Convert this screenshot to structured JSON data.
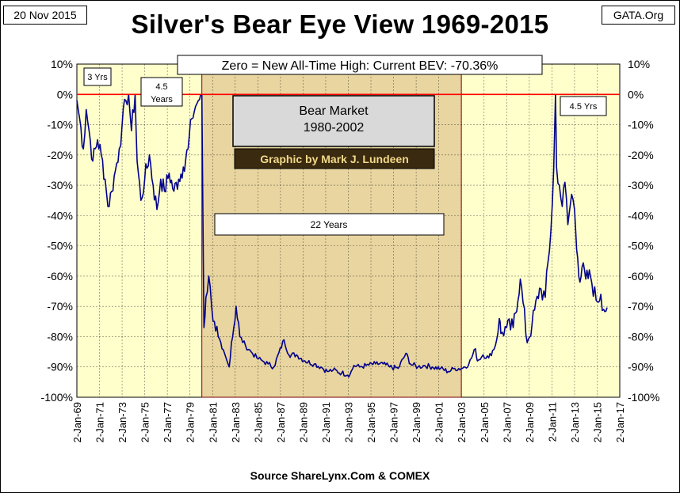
{
  "header": {
    "date": "20 Nov 2015",
    "source_tag": "GATA.Org",
    "title": "Silver's Bear Eye View 1969-2015"
  },
  "footer": {
    "source": "Source ShareLynx.Com & COMEX"
  },
  "colors": {
    "plot_background": "#ffffcc",
    "bear_market_shade": "#e8d5a0",
    "series_line": "#00008b",
    "zero_line": "#ff0000",
    "credit_box": "#3a2a10",
    "credit_text": "#f2d98a",
    "label_box": "#d9d9d9"
  },
  "annotations": {
    "bev_note": "Zero = New All-Time High: Current BEV: -70.36%",
    "bear_title_line1": "Bear Market",
    "bear_title_line2": "1980-2002",
    "credit": "Graphic by Mark J. Lundeen",
    "span_22": "22 Years",
    "span_3": "3 Yrs",
    "span_45_line1": "4.5",
    "span_45_line2": "Years",
    "span_45b": "4.5 Yrs"
  },
  "chart_data": {
    "type": "line",
    "title": "Silver's Bear Eye View 1969-2015",
    "xlabel": "",
    "ylabel": "",
    "ylim": [
      -100,
      10
    ],
    "xlim": [
      "1969-01-02",
      "2017-01-02"
    ],
    "y_ticks": [
      "10%",
      "0%",
      "-10%",
      "-20%",
      "-30%",
      "-40%",
      "-50%",
      "-60%",
      "-70%",
      "-80%",
      "-90%",
      "-100%"
    ],
    "x_ticks": [
      "2-Jan-69",
      "2-Jan-71",
      "2-Jan-73",
      "2-Jan-75",
      "2-Jan-77",
      "2-Jan-79",
      "2-Jan-81",
      "2-Jan-83",
      "2-Jan-85",
      "2-Jan-87",
      "2-Jan-89",
      "2-Jan-91",
      "2-Jan-93",
      "2-Jan-95",
      "2-Jan-97",
      "2-Jan-99",
      "2-Jan-01",
      "2-Jan-03",
      "2-Jan-05",
      "2-Jan-07",
      "2-Jan-09",
      "2-Jan-11",
      "2-Jan-13",
      "2-Jan-15",
      "2-Jan-17"
    ],
    "grid": true,
    "shaded_region": {
      "start": "1980-01-21",
      "end": "2002-12-31",
      "label": "Bear Market 1980-2002"
    },
    "reference_line": {
      "y": 0,
      "color": "#ff0000"
    },
    "series": [
      {
        "name": "",
        "points": [
          [
            "1969-01-02",
            -2
          ],
          [
            "1969-04-01",
            -8
          ],
          [
            "1969-08-01",
            -18
          ],
          [
            "1969-11-01",
            -5
          ],
          [
            "1970-02-01",
            -12
          ],
          [
            "1970-06-01",
            -22
          ],
          [
            "1970-11-01",
            -15
          ],
          [
            "1971-03-01",
            -20
          ],
          [
            "1971-07-01",
            -28
          ],
          [
            "1971-10-01",
            -37
          ],
          [
            "1972-02-01",
            -32
          ],
          [
            "1972-06-01",
            -25
          ],
          [
            "1972-10-01",
            -18
          ],
          [
            "1973-01-02",
            -10
          ],
          [
            "1973-05-01",
            -2
          ],
          [
            "1973-08-01",
            0
          ],
          [
            "1973-11-01",
            -12
          ],
          [
            "1974-02-26",
            0
          ],
          [
            "1974-05-01",
            -22
          ],
          [
            "1974-09-01",
            -35
          ],
          [
            "1975-01-01",
            -28
          ],
          [
            "1975-06-01",
            -20
          ],
          [
            "1975-10-01",
            -30
          ],
          [
            "1976-02-01",
            -38
          ],
          [
            "1976-06-01",
            -28
          ],
          [
            "1976-10-01",
            -32
          ],
          [
            "1977-03-01",
            -26
          ],
          [
            "1977-08-01",
            -32
          ],
          [
            "1978-01-01",
            -28
          ],
          [
            "1978-06-01",
            -24
          ],
          [
            "1978-11-01",
            -18
          ],
          [
            "1979-03-01",
            -8
          ],
          [
            "1979-07-01",
            -4
          ],
          [
            "1979-10-01",
            -2
          ],
          [
            "1980-01-21",
            0
          ],
          [
            "1980-02-15",
            -30
          ],
          [
            "1980-03-27",
            -77
          ],
          [
            "1980-06-01",
            -67
          ],
          [
            "1980-09-01",
            -60
          ],
          [
            "1980-12-01",
            -70
          ],
          [
            "1981-03-01",
            -75
          ],
          [
            "1981-07-01",
            -80
          ],
          [
            "1981-11-01",
            -84
          ],
          [
            "1982-06-21",
            -90
          ],
          [
            "1982-09-01",
            -82
          ],
          [
            "1983-02-01",
            -70
          ],
          [
            "1983-06-01",
            -80
          ],
          [
            "1983-12-01",
            -83
          ],
          [
            "1984-06-01",
            -85
          ],
          [
            "1984-12-01",
            -87
          ],
          [
            "1985-06-01",
            -88
          ],
          [
            "1985-12-01",
            -89
          ],
          [
            "1986-06-01",
            -90
          ],
          [
            "1987-04-25",
            -81
          ],
          [
            "1987-10-01",
            -86
          ],
          [
            "1988-06-01",
            -86
          ],
          [
            "1989-03-01",
            -88
          ],
          [
            "1990-01-01",
            -89
          ],
          [
            "1990-08-01",
            -90
          ],
          [
            "1991-03-01",
            -91.5
          ],
          [
            "1991-09-01",
            -91
          ],
          [
            "1992-06-01",
            -92
          ],
          [
            "1993-02-26",
            -92.5
          ],
          [
            "1993-07-01",
            -89.5
          ],
          [
            "1994-01-01",
            -90
          ],
          [
            "1994-08-01",
            -89.5
          ],
          [
            "1995-06-01",
            -89
          ],
          [
            "1996-02-01",
            -89
          ],
          [
            "1996-09-01",
            -90
          ],
          [
            "1997-06-01",
            -90.5
          ],
          [
            "1998-02-06",
            -85.5
          ],
          [
            "1998-07-01",
            -89
          ],
          [
            "1999-03-01",
            -90
          ],
          [
            "1999-10-01",
            -89.5
          ],
          [
            "2000-06-01",
            -90
          ],
          [
            "2001-03-01",
            -90.5
          ],
          [
            "2001-11-01",
            -91.5
          ],
          [
            "2002-06-01",
            -90.5
          ],
          [
            "2003-01-01",
            -90.5
          ],
          [
            "2003-09-01",
            -89
          ],
          [
            "2004-04-01",
            -84
          ],
          [
            "2004-06-01",
            -88
          ],
          [
            "2004-12-01",
            -86
          ],
          [
            "2005-06-01",
            -87
          ],
          [
            "2006-01-01",
            -83
          ],
          [
            "2006-05-10",
            -74
          ],
          [
            "2006-07-01",
            -79
          ],
          [
            "2007-01-01",
            -77
          ],
          [
            "2007-08-01",
            -77
          ],
          [
            "2008-03-17",
            -61
          ],
          [
            "2008-10-27",
            -82
          ],
          [
            "2009-04-01",
            -76
          ],
          [
            "2009-12-01",
            -64
          ],
          [
            "2010-06-01",
            -67
          ],
          [
            "2010-12-01",
            -45
          ],
          [
            "2011-03-01",
            -25
          ],
          [
            "2011-04-28",
            0
          ],
          [
            "2011-06-01",
            -24
          ],
          [
            "2011-09-01",
            -30
          ],
          [
            "2011-12-01",
            -37
          ],
          [
            "2012-02-28",
            -29
          ],
          [
            "2012-06-01",
            -43
          ],
          [
            "2012-10-01",
            -33
          ],
          [
            "2013-01-01",
            -38
          ],
          [
            "2013-04-15",
            -54
          ],
          [
            "2013-06-28",
            -62
          ],
          [
            "2013-09-01",
            -57
          ],
          [
            "2014-01-01",
            -61
          ],
          [
            "2014-06-01",
            -60
          ],
          [
            "2014-12-01",
            -68
          ],
          [
            "2015-05-01",
            -66
          ],
          [
            "2015-08-01",
            -71
          ],
          [
            "2015-11-20",
            -70.36
          ]
        ]
      }
    ]
  }
}
